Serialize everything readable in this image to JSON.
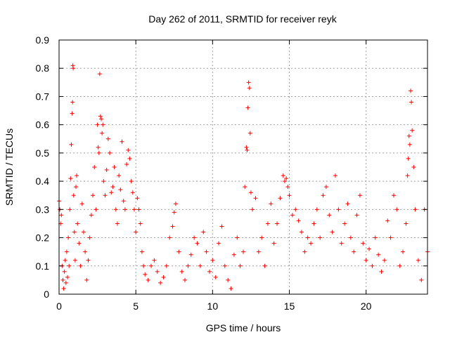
{
  "chart_data": {
    "type": "scatter",
    "title": "Day 262 of 2011, SRMTID for receiver reyk",
    "xlabel": "GPS time / hours",
    "ylabel": "SRMTID / TECUs",
    "xlim": [
      0,
      24
    ],
    "ylim": [
      0,
      0.9
    ],
    "xticks": [
      "0",
      "5",
      "10",
      "15",
      "20"
    ],
    "yticks": [
      "0",
      "0.1",
      "0.2",
      "0.3",
      "0.4",
      "0.5",
      "0.6",
      "0.7",
      "0.8",
      "0.9"
    ],
    "grid": true,
    "marker": "plus",
    "series": [
      {
        "color": "#ff0000",
        "points": [
          [
            0.0,
            0.33
          ],
          [
            0.05,
            0.3
          ],
          [
            0.1,
            0.25
          ],
          [
            0.15,
            0.28
          ],
          [
            0.2,
            0.1
          ],
          [
            0.25,
            0.05
          ],
          [
            0.3,
            0.02
          ],
          [
            0.35,
            0.08
          ],
          [
            0.4,
            0.12
          ],
          [
            0.45,
            0.04
          ],
          [
            0.5,
            0.15
          ],
          [
            0.55,
            0.06
          ],
          [
            0.6,
            0.2
          ],
          [
            0.65,
            0.1
          ],
          [
            0.7,
            0.3
          ],
          [
            0.75,
            0.41
          ],
          [
            0.8,
            0.53
          ],
          [
            0.85,
            0.64
          ],
          [
            0.88,
            0.68
          ],
          [
            0.9,
            0.81
          ],
          [
            0.92,
            0.8
          ],
          [
            0.95,
            0.35
          ],
          [
            1.0,
            0.22
          ],
          [
            1.05,
            0.12
          ],
          [
            1.1,
            0.38
          ],
          [
            1.15,
            0.42
          ],
          [
            1.2,
            0.25
          ],
          [
            1.3,
            0.18
          ],
          [
            1.4,
            0.1
          ],
          [
            1.5,
            0.32
          ],
          [
            1.6,
            0.22
          ],
          [
            1.7,
            0.15
          ],
          [
            1.8,
            0.05
          ],
          [
            1.9,
            0.12
          ],
          [
            2.0,
            0.2
          ],
          [
            2.1,
            0.28
          ],
          [
            2.2,
            0.35
          ],
          [
            2.3,
            0.45
          ],
          [
            2.4,
            0.3
          ],
          [
            2.5,
            0.6
          ],
          [
            2.55,
            0.52
          ],
          [
            2.6,
            0.5
          ],
          [
            2.65,
            0.78
          ],
          [
            2.7,
            0.63
          ],
          [
            2.75,
            0.62
          ],
          [
            2.8,
            0.57
          ],
          [
            2.85,
            0.6
          ],
          [
            2.9,
            0.4
          ],
          [
            3.0,
            0.35
          ],
          [
            3.1,
            0.44
          ],
          [
            3.2,
            0.55
          ],
          [
            3.3,
            0.5
          ],
          [
            3.4,
            0.36
          ],
          [
            3.5,
            0.38
          ],
          [
            3.6,
            0.45
          ],
          [
            3.7,
            0.3
          ],
          [
            3.8,
            0.25
          ],
          [
            3.9,
            0.42
          ],
          [
            4.0,
            0.37
          ],
          [
            4.1,
            0.54
          ],
          [
            4.2,
            0.33
          ],
          [
            4.3,
            0.3
          ],
          [
            4.4,
            0.46
          ],
          [
            4.5,
            0.51
          ],
          [
            4.6,
            0.48
          ],
          [
            4.7,
            0.4
          ],
          [
            4.8,
            0.36
          ],
          [
            4.9,
            0.3
          ],
          [
            5.0,
            0.22
          ],
          [
            5.1,
            0.34
          ],
          [
            5.2,
            0.3
          ],
          [
            5.3,
            0.25
          ],
          [
            5.4,
            0.15
          ],
          [
            5.5,
            0.1
          ],
          [
            5.6,
            0.07
          ],
          [
            5.8,
            0.05
          ],
          [
            6.0,
            0.1
          ],
          [
            6.2,
            0.12
          ],
          [
            6.4,
            0.08
          ],
          [
            6.6,
            0.04
          ],
          [
            6.8,
            0.06
          ],
          [
            7.0,
            0.1
          ],
          [
            7.2,
            0.2
          ],
          [
            7.4,
            0.24
          ],
          [
            7.5,
            0.29
          ],
          [
            7.6,
            0.32
          ],
          [
            7.8,
            0.15
          ],
          [
            8.0,
            0.08
          ],
          [
            8.2,
            0.05
          ],
          [
            8.4,
            0.1
          ],
          [
            8.6,
            0.14
          ],
          [
            8.8,
            0.2
          ],
          [
            9.0,
            0.18
          ],
          [
            9.2,
            0.1
          ],
          [
            9.4,
            0.22
          ],
          [
            9.6,
            0.15
          ],
          [
            9.8,
            0.08
          ],
          [
            10.0,
            0.12
          ],
          [
            10.2,
            0.06
          ],
          [
            10.4,
            0.18
          ],
          [
            10.6,
            0.24
          ],
          [
            10.8,
            0.1
          ],
          [
            11.0,
            0.05
          ],
          [
            11.2,
            0.02
          ],
          [
            11.4,
            0.14
          ],
          [
            11.6,
            0.2
          ],
          [
            11.8,
            0.1
          ],
          [
            12.0,
            0.15
          ],
          [
            12.1,
            0.38
          ],
          [
            12.2,
            0.52
          ],
          [
            12.25,
            0.51
          ],
          [
            12.3,
            0.66
          ],
          [
            12.35,
            0.75
          ],
          [
            12.4,
            0.73
          ],
          [
            12.45,
            0.57
          ],
          [
            12.5,
            0.36
          ],
          [
            12.6,
            0.3
          ],
          [
            12.8,
            0.34
          ],
          [
            13.0,
            0.15
          ],
          [
            13.2,
            0.2
          ],
          [
            13.4,
            0.1
          ],
          [
            13.6,
            0.25
          ],
          [
            13.8,
            0.32
          ],
          [
            14.0,
            0.18
          ],
          [
            14.2,
            0.25
          ],
          [
            14.4,
            0.34
          ],
          [
            14.6,
            0.42
          ],
          [
            14.7,
            0.4
          ],
          [
            14.8,
            0.41
          ],
          [
            14.9,
            0.38
          ],
          [
            15.0,
            0.35
          ],
          [
            15.2,
            0.28
          ],
          [
            15.4,
            0.3
          ],
          [
            15.6,
            0.26
          ],
          [
            15.8,
            0.22
          ],
          [
            16.0,
            0.15
          ],
          [
            16.2,
            0.2
          ],
          [
            16.4,
            0.18
          ],
          [
            16.6,
            0.25
          ],
          [
            16.8,
            0.3
          ],
          [
            17.0,
            0.2
          ],
          [
            17.2,
            0.35
          ],
          [
            17.4,
            0.38
          ],
          [
            17.6,
            0.28
          ],
          [
            17.8,
            0.22
          ],
          [
            18.0,
            0.42
          ],
          [
            18.2,
            0.3
          ],
          [
            18.4,
            0.18
          ],
          [
            18.6,
            0.25
          ],
          [
            18.8,
            0.32
          ],
          [
            19.0,
            0.2
          ],
          [
            19.2,
            0.15
          ],
          [
            19.4,
            0.28
          ],
          [
            19.6,
            0.35
          ],
          [
            19.8,
            0.18
          ],
          [
            20.0,
            0.12
          ],
          [
            20.2,
            0.16
          ],
          [
            20.4,
            0.1
          ],
          [
            20.6,
            0.2
          ],
          [
            20.8,
            0.14
          ],
          [
            21.0,
            0.08
          ],
          [
            21.2,
            0.12
          ],
          [
            21.4,
            0.26
          ],
          [
            21.6,
            0.2
          ],
          [
            21.8,
            0.35
          ],
          [
            22.0,
            0.3
          ],
          [
            22.2,
            0.1
          ],
          [
            22.4,
            0.15
          ],
          [
            22.6,
            0.25
          ],
          [
            22.7,
            0.42
          ],
          [
            22.75,
            0.48
          ],
          [
            22.8,
            0.56
          ],
          [
            22.85,
            0.53
          ],
          [
            22.9,
            0.72
          ],
          [
            22.95,
            0.68
          ],
          [
            23.0,
            0.58
          ],
          [
            23.1,
            0.45
          ],
          [
            23.2,
            0.3
          ],
          [
            23.4,
            0.12
          ],
          [
            23.6,
            0.05
          ],
          [
            23.8,
            0.3
          ],
          [
            24.0,
            0.15
          ]
        ]
      }
    ]
  }
}
